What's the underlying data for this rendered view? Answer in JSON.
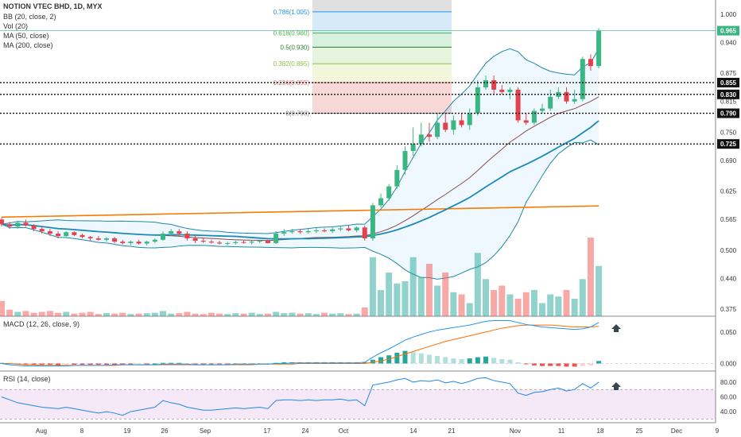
{
  "chart_data": {
    "type": "candlestick",
    "symbol_line": "NOTION VTEC BHD, 1D, MYX",
    "legend": [
      "BB (20, close, 2)",
      "Vol (20)",
      "MA (50, close)",
      "MA (200, close)"
    ],
    "macd_label": "MACD (12, 26, close, 9)",
    "rsi_label": "RSI (14, close)",
    "price_axis": {
      "ticks": [
        "1.000",
        "0.940",
        "0.875",
        "0.815",
        "0.750",
        "0.690",
        "0.625",
        "0.565",
        "0.500",
        "0.440",
        "0.375"
      ],
      "ylim": [
        0.36,
        1.03
      ]
    },
    "macd_axis": {
      "ticks": [
        "0.050",
        "0.000"
      ]
    },
    "rsi_axis": {
      "ticks": [
        "80.00",
        "60.00",
        "40.00"
      ]
    },
    "x_ticks": [
      "Aug",
      "8",
      "19",
      "26",
      "Sep",
      "17",
      "24",
      "Oct",
      "14",
      "21",
      "Nov",
      "11",
      "18",
      "25",
      "Dec",
      "9"
    ],
    "current_price": {
      "label": "0.965",
      "value": 0.965
    },
    "levels": [
      {
        "label": "0.855",
        "value": 0.855
      },
      {
        "label": "0.830",
        "value": 0.83
      },
      {
        "label": "0.790",
        "value": 0.79
      },
      {
        "label": "0.725",
        "value": 0.725
      }
    ],
    "fib": [
      {
        "label": "0.786(1.005)",
        "value": 1.005,
        "color": "#2196f3"
      },
      {
        "label": "0.618(0.960)",
        "value": 0.96,
        "color": "#4caf50"
      },
      {
        "label": "0.5(0.930)",
        "value": 0.93,
        "color": "#2e7d32"
      },
      {
        "label": "0.382(0.895)",
        "value": 0.895,
        "color": "#8bc34a"
      },
      {
        "label": "0.236(0.855)",
        "value": 0.855,
        "color": "#e57373"
      },
      {
        "label": "0(0.790)",
        "value": 0.79,
        "color": "#888888"
      }
    ],
    "candles": [
      [
        0.565,
        0.57,
        0.55,
        0.555
      ],
      [
        0.555,
        0.56,
        0.545,
        0.55
      ],
      [
        0.55,
        0.56,
        0.545,
        0.558
      ],
      [
        0.558,
        0.565,
        0.55,
        0.552
      ],
      [
        0.552,
        0.555,
        0.54,
        0.545
      ],
      [
        0.545,
        0.55,
        0.535,
        0.54
      ],
      [
        0.54,
        0.545,
        0.53,
        0.535
      ],
      [
        0.535,
        0.54,
        0.525,
        0.53
      ],
      [
        0.53,
        0.54,
        0.528,
        0.538
      ],
      [
        0.538,
        0.54,
        0.53,
        0.532
      ],
      [
        0.532,
        0.535,
        0.525,
        0.528
      ],
      [
        0.528,
        0.53,
        0.52,
        0.525
      ],
      [
        0.525,
        0.53,
        0.52,
        0.522
      ],
      [
        0.522,
        0.528,
        0.518,
        0.525
      ],
      [
        0.525,
        0.528,
        0.515,
        0.518
      ],
      [
        0.518,
        0.522,
        0.512,
        0.515
      ],
      [
        0.515,
        0.52,
        0.51,
        0.518
      ],
      [
        0.518,
        0.522,
        0.512,
        0.514
      ],
      [
        0.514,
        0.52,
        0.51,
        0.518
      ],
      [
        0.518,
        0.525,
        0.515,
        0.522
      ],
      [
        0.522,
        0.54,
        0.52,
        0.535
      ],
      [
        0.535,
        0.545,
        0.53,
        0.54
      ],
      [
        0.54,
        0.545,
        0.53,
        0.535
      ],
      [
        0.535,
        0.54,
        0.52,
        0.525
      ],
      [
        0.525,
        0.53,
        0.515,
        0.52
      ],
      [
        0.52,
        0.525,
        0.515,
        0.518
      ],
      [
        0.518,
        0.522,
        0.514,
        0.516
      ],
      [
        0.516,
        0.52,
        0.512,
        0.514
      ],
      [
        0.514,
        0.518,
        0.51,
        0.515
      ],
      [
        0.515,
        0.52,
        0.512,
        0.517
      ],
      [
        0.517,
        0.52,
        0.514,
        0.516
      ],
      [
        0.516,
        0.52,
        0.512,
        0.518
      ],
      [
        0.518,
        0.522,
        0.515,
        0.52
      ],
      [
        0.52,
        0.522,
        0.514,
        0.515
      ],
      [
        0.515,
        0.54,
        0.513,
        0.535
      ],
      [
        0.535,
        0.545,
        0.53,
        0.538
      ],
      [
        0.538,
        0.545,
        0.535,
        0.54
      ],
      [
        0.54,
        0.545,
        0.535,
        0.538
      ],
      [
        0.538,
        0.545,
        0.535,
        0.54
      ],
      [
        0.54,
        0.548,
        0.536,
        0.542
      ],
      [
        0.542,
        0.546,
        0.538,
        0.54
      ],
      [
        0.54,
        0.548,
        0.536,
        0.544
      ],
      [
        0.544,
        0.55,
        0.54,
        0.546
      ],
      [
        0.546,
        0.552,
        0.54,
        0.542
      ],
      [
        0.542,
        0.55,
        0.538,
        0.548
      ],
      [
        0.548,
        0.552,
        0.52,
        0.525
      ],
      [
        0.525,
        0.6,
        0.52,
        0.595
      ],
      [
        0.595,
        0.62,
        0.59,
        0.61
      ],
      [
        0.61,
        0.64,
        0.605,
        0.635
      ],
      [
        0.635,
        0.68,
        0.63,
        0.67
      ],
      [
        0.67,
        0.72,
        0.66,
        0.71
      ],
      [
        0.71,
        0.76,
        0.7,
        0.725
      ],
      [
        0.725,
        0.77,
        0.72,
        0.745
      ],
      [
        0.745,
        0.77,
        0.73,
        0.74
      ],
      [
        0.74,
        0.79,
        0.735,
        0.77
      ],
      [
        0.77,
        0.79,
        0.75,
        0.755
      ],
      [
        0.755,
        0.785,
        0.745,
        0.775
      ],
      [
        0.775,
        0.79,
        0.76,
        0.765
      ],
      [
        0.765,
        0.8,
        0.755,
        0.79
      ],
      [
        0.79,
        0.86,
        0.785,
        0.845
      ],
      [
        0.845,
        0.87,
        0.84,
        0.86
      ],
      [
        0.86,
        0.87,
        0.83,
        0.84
      ],
      [
        0.84,
        0.85,
        0.83,
        0.835
      ],
      [
        0.835,
        0.845,
        0.82,
        0.84
      ],
      [
        0.84,
        0.845,
        0.77,
        0.775
      ],
      [
        0.775,
        0.79,
        0.765,
        0.77
      ],
      [
        0.77,
        0.8,
        0.765,
        0.795
      ],
      [
        0.795,
        0.81,
        0.79,
        0.8
      ],
      [
        0.8,
        0.84,
        0.795,
        0.825
      ],
      [
        0.825,
        0.845,
        0.82,
        0.835
      ],
      [
        0.835,
        0.845,
        0.81,
        0.815
      ],
      [
        0.815,
        0.84,
        0.81,
        0.82
      ],
      [
        0.82,
        0.91,
        0.815,
        0.905
      ],
      [
        0.905,
        0.915,
        0.88,
        0.89
      ],
      [
        0.89,
        0.97,
        0.885,
        0.965
      ]
    ],
    "volume": [
      0.35,
      0.15,
      0.1,
      0.12,
      0.08,
      0.1,
      0.12,
      0.08,
      0.1,
      0.06,
      0.08,
      0.1,
      0.05,
      0.07,
      0.06,
      0.08,
      0.05,
      0.06,
      0.07,
      0.08,
      0.12,
      0.06,
      0.07,
      0.1,
      0.06,
      0.05,
      0.08,
      0.06,
      0.05,
      0.07,
      0.06,
      0.08,
      0.05,
      0.06,
      0.1,
      0.07,
      0.08,
      0.06,
      0.07,
      0.05,
      0.08,
      0.06,
      0.07,
      0.05,
      0.06,
      0.2,
      1.35,
      0.6,
      1.0,
      0.75,
      0.8,
      1.35,
      0.9,
      1.2,
      0.7,
      1.0,
      0.55,
      0.5,
      0.3,
      1.45,
      0.85,
      0.6,
      0.7,
      0.5,
      0.4,
      0.55,
      0.6,
      0.3,
      0.5,
      0.45,
      0.6,
      0.4,
      0.85,
      1.8,
      1.15
    ],
    "macd_hist": [
      0.001,
      0.0,
      -0.001,
      -0.001,
      -0.002,
      -0.002,
      -0.002,
      -0.003,
      -0.002,
      -0.002,
      -0.002,
      -0.002,
      -0.002,
      -0.002,
      -0.002,
      -0.002,
      -0.002,
      -0.001,
      -0.001,
      0.0,
      0.001,
      0.001,
      0.001,
      0.0,
      -0.001,
      -0.001,
      -0.001,
      -0.001,
      -0.001,
      0.0,
      0.0,
      0.0,
      0.0,
      0.0,
      0.001,
      0.002,
      0.002,
      0.002,
      0.002,
      0.002,
      0.002,
      0.002,
      0.002,
      0.002,
      0.002,
      0.002,
      0.006,
      0.01,
      0.013,
      0.017,
      0.02,
      0.018,
      0.016,
      0.014,
      0.012,
      0.01,
      0.008,
      0.007,
      0.008,
      0.01,
      0.011,
      0.009,
      0.007,
      0.006,
      0.002,
      -0.001,
      -0.003,
      -0.004,
      -0.004,
      -0.004,
      -0.005,
      -0.005,
      -0.004,
      -0.003,
      0.004
    ],
    "macd_line": [
      0.0,
      -0.002,
      -0.003,
      -0.004,
      -0.004,
      -0.004,
      -0.004,
      -0.004,
      -0.004,
      -0.003,
      -0.003,
      -0.003,
      -0.003,
      -0.003,
      -0.002,
      -0.002,
      -0.002,
      -0.002,
      -0.002,
      -0.002,
      -0.001,
      -0.001,
      -0.001,
      -0.001,
      -0.002,
      -0.002,
      -0.002,
      -0.002,
      -0.002,
      -0.001,
      -0.001,
      -0.001,
      -0.001,
      -0.001,
      0.0,
      0.0,
      0.001,
      0.001,
      0.001,
      0.001,
      0.001,
      0.001,
      0.001,
      0.001,
      0.001,
      0.002,
      0.01,
      0.017,
      0.023,
      0.03,
      0.037,
      0.042,
      0.046,
      0.05,
      0.053,
      0.055,
      0.057,
      0.059,
      0.061,
      0.064,
      0.067,
      0.068,
      0.068,
      0.068,
      0.065,
      0.062,
      0.06,
      0.058,
      0.057,
      0.056,
      0.055,
      0.054,
      0.055,
      0.058,
      0.065
    ],
    "signal_line": [
      0.0,
      0.0,
      -0.001,
      -0.002,
      -0.002,
      -0.003,
      -0.003,
      -0.003,
      -0.003,
      -0.003,
      -0.003,
      -0.003,
      -0.003,
      -0.003,
      -0.003,
      -0.002,
      -0.002,
      -0.002,
      -0.002,
      -0.002,
      -0.002,
      -0.002,
      -0.002,
      -0.002,
      -0.002,
      -0.002,
      -0.002,
      -0.002,
      -0.002,
      -0.002,
      -0.002,
      -0.002,
      -0.001,
      -0.001,
      -0.001,
      -0.001,
      -0.001,
      0.0,
      0.0,
      0.0,
      0.0,
      0.0,
      0.0,
      0.0,
      0.0,
      0.0,
      0.002,
      0.004,
      0.007,
      0.011,
      0.015,
      0.019,
      0.023,
      0.027,
      0.031,
      0.035,
      0.038,
      0.041,
      0.044,
      0.047,
      0.05,
      0.053,
      0.056,
      0.058,
      0.06,
      0.061,
      0.061,
      0.061,
      0.061,
      0.06,
      0.059,
      0.058,
      0.058,
      0.058,
      0.059
    ],
    "rsi": [
      60,
      56,
      52,
      50,
      48,
      46,
      45,
      44,
      46,
      44,
      42,
      40,
      38,
      40,
      38,
      35,
      40,
      42,
      44,
      46,
      55,
      52,
      50,
      46,
      44,
      42,
      42,
      43,
      44,
      45,
      44,
      45,
      46,
      44,
      55,
      56,
      56,
      55,
      56,
      55,
      56,
      56,
      57,
      55,
      56,
      48,
      76,
      78,
      80,
      83,
      85,
      80,
      82,
      81,
      83,
      79,
      81,
      78,
      81,
      85,
      86,
      82,
      80,
      78,
      65,
      62,
      66,
      67,
      70,
      72,
      68,
      70,
      78,
      72,
      80
    ]
  }
}
